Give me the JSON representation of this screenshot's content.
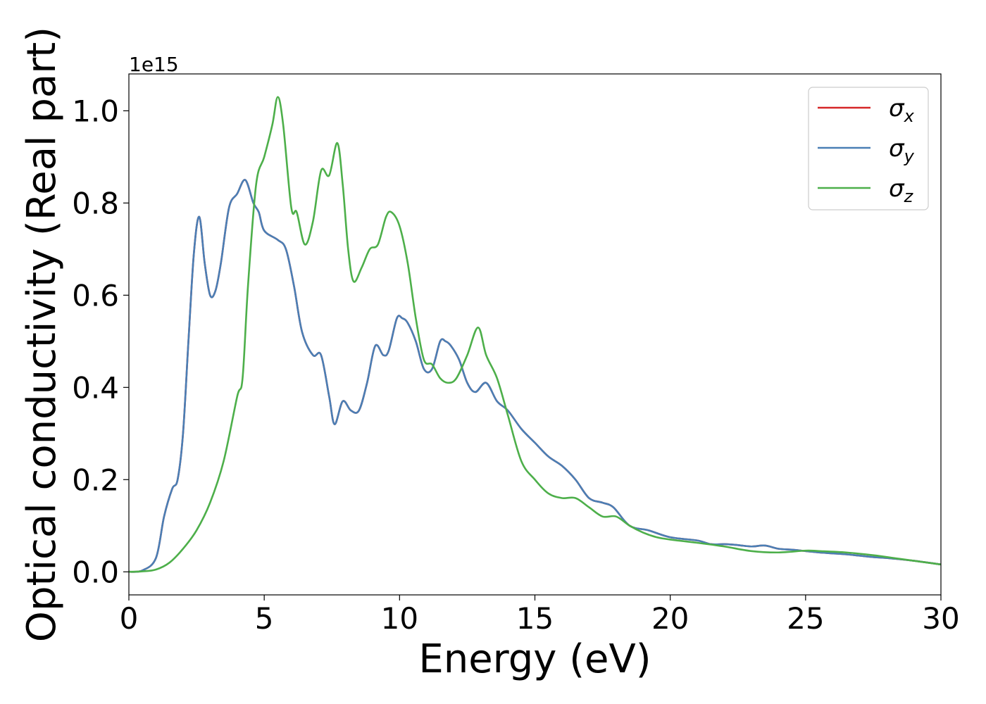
{
  "chart_data": {
    "type": "line",
    "xlabel": "Energy (eV)",
    "ylabel": "Optical conductivity (Real part)",
    "y_offset_label": "1e15",
    "xlim": [
      0,
      30
    ],
    "ylim": [
      -0.05,
      1.08
    ],
    "x_ticks": [
      0,
      5,
      10,
      15,
      20,
      25,
      30
    ],
    "x_tick_labels": [
      "0",
      "5",
      "10",
      "15",
      "20",
      "25",
      "30"
    ],
    "y_ticks": [
      0.0,
      0.2,
      0.4,
      0.6,
      0.8,
      1.0
    ],
    "y_tick_labels": [
      "0.0",
      "0.2",
      "0.4",
      "0.6",
      "0.8",
      "1.0"
    ],
    "grid": false,
    "legend_position": "top-right",
    "series": [
      {
        "name": "σx",
        "legend_symbol": "σ",
        "legend_subscript": "x",
        "color": "#d62728",
        "x": [
          0,
          0.5,
          1.0,
          1.3,
          1.6,
          1.8,
          2.0,
          2.2,
          2.4,
          2.6,
          2.8,
          3.0,
          3.2,
          3.4,
          3.7,
          4.0,
          4.3,
          4.6,
          4.8,
          5.0,
          5.5,
          5.8,
          6.1,
          6.4,
          6.8,
          7.1,
          7.4,
          7.6,
          7.9,
          8.2,
          8.5,
          8.8,
          9.1,
          9.4,
          9.6,
          9.9,
          10.1,
          10.3,
          10.6,
          10.9,
          11.2,
          11.5,
          11.7,
          11.9,
          12.2,
          12.5,
          12.8,
          13.2,
          13.6,
          14.0,
          14.5,
          15.0,
          15.5,
          16.0,
          16.5,
          17.0,
          17.5,
          17.9,
          18.5,
          19.2,
          20.0,
          21.0,
          21.5,
          22.0,
          22.5,
          23.0,
          23.5,
          24.0,
          24.5,
          25.0,
          25.5,
          26.0,
          26.5,
          27.0,
          27.5,
          28.0,
          29.0,
          30.0
        ],
        "values": [
          0.0,
          0.003,
          0.03,
          0.12,
          0.18,
          0.2,
          0.3,
          0.5,
          0.69,
          0.77,
          0.67,
          0.6,
          0.61,
          0.67,
          0.79,
          0.82,
          0.85,
          0.8,
          0.78,
          0.74,
          0.72,
          0.7,
          0.62,
          0.52,
          0.47,
          0.47,
          0.38,
          0.32,
          0.37,
          0.35,
          0.35,
          0.41,
          0.49,
          0.47,
          0.48,
          0.55,
          0.55,
          0.54,
          0.5,
          0.44,
          0.44,
          0.5,
          0.5,
          0.49,
          0.46,
          0.41,
          0.39,
          0.41,
          0.37,
          0.35,
          0.31,
          0.28,
          0.25,
          0.23,
          0.2,
          0.16,
          0.15,
          0.14,
          0.1,
          0.09,
          0.075,
          0.068,
          0.06,
          0.06,
          0.058,
          0.055,
          0.057,
          0.05,
          0.048,
          0.045,
          0.042,
          0.04,
          0.038,
          0.035,
          0.032,
          0.03,
          0.024,
          0.016
        ]
      },
      {
        "name": "σy",
        "legend_symbol": "σ",
        "legend_subscript": "y",
        "color": "#4a7fb5",
        "x": [
          0,
          0.5,
          1.0,
          1.3,
          1.6,
          1.8,
          2.0,
          2.2,
          2.4,
          2.6,
          2.8,
          3.0,
          3.2,
          3.4,
          3.7,
          4.0,
          4.3,
          4.6,
          4.8,
          5.0,
          5.5,
          5.8,
          6.1,
          6.4,
          6.8,
          7.1,
          7.4,
          7.6,
          7.9,
          8.2,
          8.5,
          8.8,
          9.1,
          9.4,
          9.6,
          9.9,
          10.1,
          10.3,
          10.6,
          10.9,
          11.2,
          11.5,
          11.7,
          11.9,
          12.2,
          12.5,
          12.8,
          13.2,
          13.6,
          14.0,
          14.5,
          15.0,
          15.5,
          16.0,
          16.5,
          17.0,
          17.5,
          17.9,
          18.5,
          19.2,
          20.0,
          21.0,
          21.5,
          22.0,
          22.5,
          23.0,
          23.5,
          24.0,
          24.5,
          25.0,
          25.5,
          26.0,
          26.5,
          27.0,
          27.5,
          28.0,
          29.0,
          30.0
        ],
        "values": [
          0.0,
          0.003,
          0.03,
          0.12,
          0.18,
          0.2,
          0.3,
          0.5,
          0.69,
          0.77,
          0.67,
          0.6,
          0.61,
          0.67,
          0.79,
          0.82,
          0.85,
          0.8,
          0.78,
          0.74,
          0.72,
          0.7,
          0.62,
          0.52,
          0.47,
          0.47,
          0.38,
          0.32,
          0.37,
          0.35,
          0.35,
          0.41,
          0.49,
          0.47,
          0.48,
          0.55,
          0.55,
          0.54,
          0.5,
          0.44,
          0.44,
          0.5,
          0.5,
          0.49,
          0.46,
          0.41,
          0.39,
          0.41,
          0.37,
          0.35,
          0.31,
          0.28,
          0.25,
          0.23,
          0.2,
          0.16,
          0.15,
          0.14,
          0.1,
          0.09,
          0.075,
          0.068,
          0.06,
          0.06,
          0.058,
          0.055,
          0.057,
          0.05,
          0.048,
          0.045,
          0.042,
          0.04,
          0.038,
          0.035,
          0.032,
          0.03,
          0.024,
          0.016
        ]
      },
      {
        "name": "σz",
        "legend_symbol": "σ",
        "legend_subscript": "z",
        "color": "#4daf4a",
        "x": [
          0,
          0.5,
          1.0,
          1.5,
          2.0,
          2.5,
          3.0,
          3.5,
          4.0,
          4.2,
          4.4,
          4.7,
          5.0,
          5.3,
          5.5,
          5.7,
          6.0,
          6.2,
          6.5,
          6.8,
          7.1,
          7.4,
          7.7,
          7.9,
          8.1,
          8.3,
          8.6,
          8.9,
          9.2,
          9.5,
          9.7,
          10.0,
          10.3,
          10.6,
          10.9,
          11.2,
          11.5,
          11.8,
          12.1,
          12.5,
          12.9,
          13.2,
          13.6,
          14.0,
          14.5,
          15.0,
          15.5,
          16.0,
          16.5,
          17.0,
          17.5,
          18.0,
          18.5,
          19.0,
          19.5,
          20.0,
          21.0,
          22.0,
          23.0,
          24.0,
          25.0,
          25.5,
          26.5,
          27.5,
          28.5,
          30.0
        ],
        "values": [
          0.0,
          0.001,
          0.005,
          0.02,
          0.05,
          0.09,
          0.15,
          0.24,
          0.38,
          0.42,
          0.62,
          0.84,
          0.9,
          0.97,
          1.03,
          0.97,
          0.79,
          0.78,
          0.71,
          0.76,
          0.87,
          0.86,
          0.93,
          0.84,
          0.7,
          0.63,
          0.66,
          0.7,
          0.71,
          0.77,
          0.78,
          0.75,
          0.67,
          0.55,
          0.46,
          0.45,
          0.42,
          0.41,
          0.42,
          0.47,
          0.53,
          0.47,
          0.42,
          0.34,
          0.24,
          0.2,
          0.17,
          0.16,
          0.16,
          0.14,
          0.12,
          0.12,
          0.1,
          0.085,
          0.075,
          0.07,
          0.063,
          0.055,
          0.045,
          0.042,
          0.046,
          0.045,
          0.042,
          0.036,
          0.028,
          0.016
        ]
      }
    ]
  }
}
